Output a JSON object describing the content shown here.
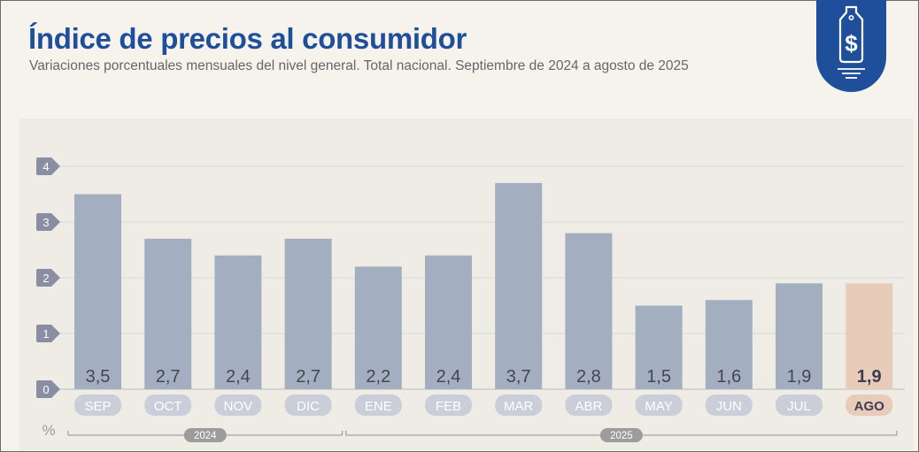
{
  "header": {
    "title": "Índice de precios al consumidor",
    "subtitle": "Variaciones porcentuales mensuales del nivel general. Total nacional. Septiembre de 2024 a agosto de 2025"
  },
  "icons": {
    "badge": "price-tag-dollar-icon"
  },
  "colors": {
    "title": "#1f4f9a",
    "bar": "#a3afc1",
    "bar_highlight": "#e9cbb9",
    "label_bg": "#c9ced8",
    "label_bg_highlight": "#e9cbb9",
    "tick_badge": "#8a8ea3",
    "year_badge": "#9c9c9c"
  },
  "chart_data": {
    "type": "bar",
    "categories": [
      "SEP",
      "OCT",
      "NOV",
      "DIC",
      "ENE",
      "FEB",
      "MAR",
      "ABR",
      "MAY",
      "JUN",
      "JUL",
      "AGO"
    ],
    "values": [
      3.5,
      2.7,
      2.4,
      2.7,
      2.2,
      2.4,
      3.7,
      2.8,
      1.5,
      1.6,
      1.9,
      1.9
    ],
    "value_labels": [
      "3,5",
      "2,7",
      "2,4",
      "2,7",
      "2,2",
      "2,4",
      "3,7",
      "2,8",
      "1,5",
      "1,6",
      "1,9",
      "1,9"
    ],
    "highlight_index": 11,
    "yticks": [
      0,
      1,
      2,
      3,
      4
    ],
    "ylim": [
      0,
      4
    ],
    "yunit": "%",
    "year_groups": [
      {
        "label": "2024",
        "start": 0,
        "end": 3
      },
      {
        "label": "2025",
        "start": 4,
        "end": 11
      }
    ],
    "grid": true,
    "legend": "none"
  }
}
